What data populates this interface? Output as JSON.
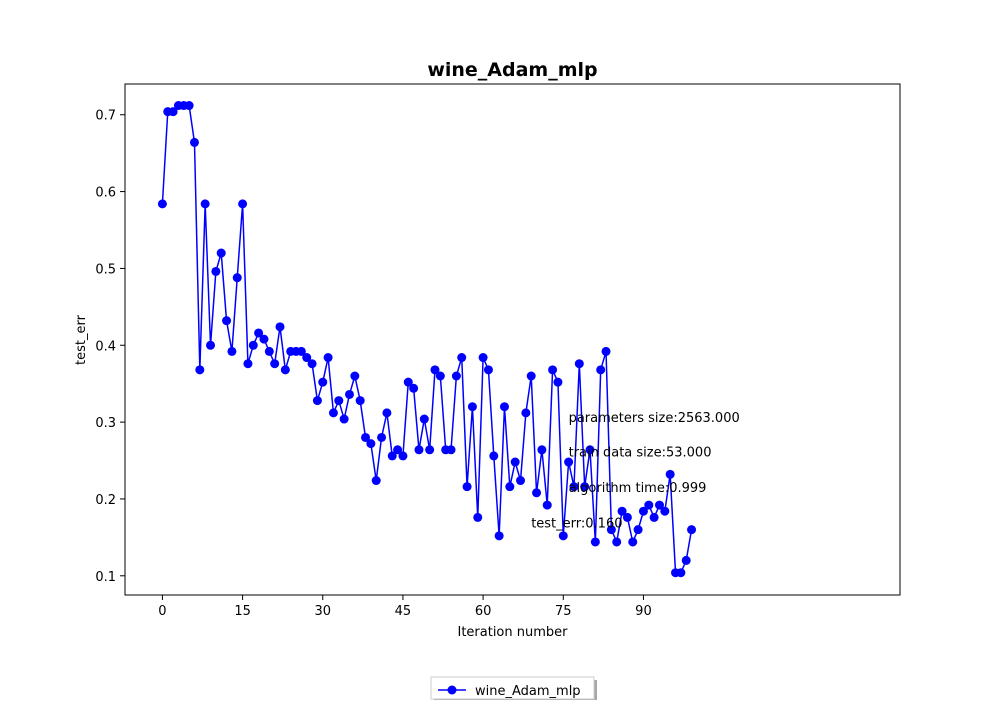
{
  "chart_data": {
    "type": "line",
    "title": "wine_Adam_mlp",
    "xlabel": "Iteration number",
    "ylabel": "test_err",
    "xlim": [
      -7,
      138
    ],
    "ylim": [
      0.075,
      0.74
    ],
    "x_ticks": [
      0,
      15,
      30,
      45,
      60,
      75,
      90
    ],
    "y_ticks": [
      0.1,
      0.2,
      0.3,
      0.4,
      0.5,
      0.6,
      0.7
    ],
    "x_tick_labels": [
      "0",
      "15",
      "30",
      "45",
      "60",
      "75",
      "90"
    ],
    "y_tick_labels": [
      "0.1",
      "0.2",
      "0.3",
      "0.4",
      "0.5",
      "0.6",
      "0.7"
    ],
    "grid": false,
    "legend_position": "bottom-center",
    "series": [
      {
        "name": "wine_Adam_mlp",
        "color": "#0000ff",
        "marker": "circle",
        "x": [
          0,
          1,
          2,
          3,
          4,
          5,
          6,
          7,
          8,
          9,
          10,
          11,
          12,
          13,
          14,
          15,
          16,
          17,
          18,
          19,
          20,
          21,
          22,
          23,
          24,
          25,
          26,
          27,
          28,
          29,
          30,
          31,
          32,
          33,
          34,
          35,
          36,
          37,
          38,
          39,
          40,
          41,
          42,
          43,
          44,
          45,
          46,
          47,
          48,
          49,
          50,
          51,
          52,
          53,
          54,
          55,
          56,
          57,
          58,
          59,
          60,
          61,
          62,
          63,
          64,
          65,
          66,
          67,
          68,
          69,
          70,
          71,
          72,
          73,
          74,
          75,
          76,
          77,
          78,
          79,
          80,
          81,
          82,
          83,
          84,
          85,
          86,
          87,
          88,
          89,
          90,
          91,
          92,
          93,
          94,
          95,
          96,
          97,
          98,
          99
        ],
        "values": [
          0.584,
          0.704,
          0.704,
          0.712,
          0.712,
          0.712,
          0.664,
          0.368,
          0.584,
          0.4,
          0.496,
          0.52,
          0.432,
          0.392,
          0.488,
          0.584,
          0.376,
          0.4,
          0.416,
          0.408,
          0.392,
          0.376,
          0.424,
          0.368,
          0.392,
          0.392,
          0.392,
          0.384,
          0.376,
          0.328,
          0.352,
          0.384,
          0.312,
          0.328,
          0.304,
          0.336,
          0.36,
          0.328,
          0.28,
          0.272,
          0.224,
          0.28,
          0.312,
          0.256,
          0.264,
          0.256,
          0.352,
          0.344,
          0.264,
          0.304,
          0.264,
          0.368,
          0.36,
          0.264,
          0.264,
          0.36,
          0.384,
          0.216,
          0.32,
          0.176,
          0.384,
          0.368,
          0.256,
          0.152,
          0.32,
          0.216,
          0.248,
          0.224,
          0.312,
          0.36,
          0.208,
          0.264,
          0.192,
          0.368,
          0.352,
          0.152,
          0.248,
          0.216,
          0.376,
          0.216,
          0.264,
          0.144,
          0.368,
          0.392,
          0.16,
          0.144,
          0.184,
          0.176,
          0.144,
          0.16,
          0.184,
          0.192,
          0.176,
          0.192,
          0.184,
          0.232,
          0.104,
          0.104,
          0.12,
          0.16
        ]
      }
    ],
    "annotations": [
      {
        "text": "parameters size:2563.000",
        "x": 76,
        "y": 0.3
      },
      {
        "text": "train data size:53.000",
        "x": 76,
        "y": 0.255
      },
      {
        "text": "algorithm time:0.999",
        "x": 76,
        "y": 0.209
      },
      {
        "text": "test_err:0.160",
        "x": 69,
        "y": 0.163
      }
    ]
  }
}
